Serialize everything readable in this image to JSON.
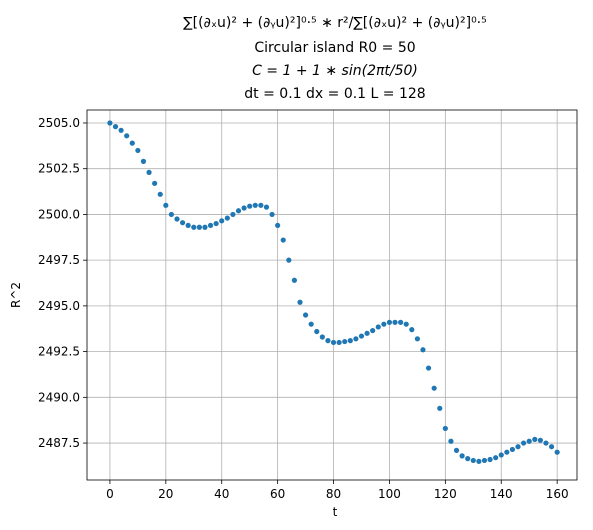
{
  "chart_data": {
    "type": "scatter",
    "title": [
      "∑[(∂ₓu)² + (∂ᵧu)²]⁰·⁵ ∗ r²/∑[(∂ₓu)² + (∂ᵧu)²]⁰·⁵",
      "Circular island R0 = 50",
      "C = 1 + 1 ∗ sin(2πt/50)",
      "dt = 0.1 dx = 0.1 L = 128"
    ],
    "xlabel": "t",
    "ylabel": "R^2",
    "color": "#1f77b4",
    "grid": true,
    "xlim": [
      -8.2,
      167.1
    ],
    "ylim": [
      2485.48,
      2505.71
    ],
    "xticks": [
      0,
      20,
      40,
      60,
      80,
      100,
      120,
      140,
      160
    ],
    "yticks": [
      {
        "value": 2487.5,
        "label": "2487.5"
      },
      {
        "value": 2490.0,
        "label": "2490.0"
      },
      {
        "value": 2492.5,
        "label": "2492.5"
      },
      {
        "value": 2495.0,
        "label": "2495.0"
      },
      {
        "value": 2497.5,
        "label": "2497.5"
      },
      {
        "value": 2500.0,
        "label": "2500.0"
      },
      {
        "value": 2502.5,
        "label": "2502.5"
      },
      {
        "value": 2505.0,
        "label": "2505.0"
      }
    ],
    "x": [
      0,
      2,
      4,
      6,
      8,
      10,
      12,
      14,
      16,
      18,
      20,
      22,
      24,
      26,
      28,
      30,
      32,
      34,
      36,
      38,
      40,
      42,
      44,
      46,
      48,
      50,
      52,
      54,
      56,
      58,
      60,
      62,
      64,
      66,
      68,
      70,
      72,
      74,
      76,
      78,
      80,
      82,
      84,
      86,
      88,
      90,
      92,
      94,
      96,
      98,
      100,
      102,
      104,
      106,
      108,
      110,
      112,
      114,
      116,
      118,
      120,
      122,
      124,
      126,
      128,
      130,
      132,
      134,
      136,
      138,
      140,
      142,
      144,
      146,
      148,
      150,
      152,
      154,
      156,
      158,
      160
    ],
    "values": [
      2505.0,
      2504.8,
      2504.6,
      2504.3,
      2503.9,
      2503.5,
      2502.9,
      2502.3,
      2501.7,
      2501.1,
      2500.5,
      2500.0,
      2499.75,
      2499.55,
      2499.4,
      2499.3,
      2499.3,
      2499.3,
      2499.4,
      2499.5,
      2499.65,
      2499.8,
      2500.0,
      2500.2,
      2500.35,
      2500.45,
      2500.5,
      2500.5,
      2500.4,
      2500.0,
      2499.4,
      2498.6,
      2497.5,
      2496.4,
      2495.2,
      2494.5,
      2494.0,
      2493.6,
      2493.3,
      2493.1,
      2493.0,
      2493.0,
      2493.05,
      2493.1,
      2493.2,
      2493.35,
      2493.5,
      2493.65,
      2493.85,
      2494.0,
      2494.1,
      2494.1,
      2494.1,
      2494.0,
      2493.7,
      2493.2,
      2492.6,
      2491.6,
      2490.5,
      2489.4,
      2488.3,
      2487.6,
      2487.1,
      2486.8,
      2486.65,
      2486.55,
      2486.5,
      2486.55,
      2486.6,
      2486.7,
      2486.85,
      2487.0,
      2487.15,
      2487.3,
      2487.5,
      2487.6,
      2487.7,
      2487.65,
      2487.5,
      2487.3,
      2487.0
    ]
  }
}
